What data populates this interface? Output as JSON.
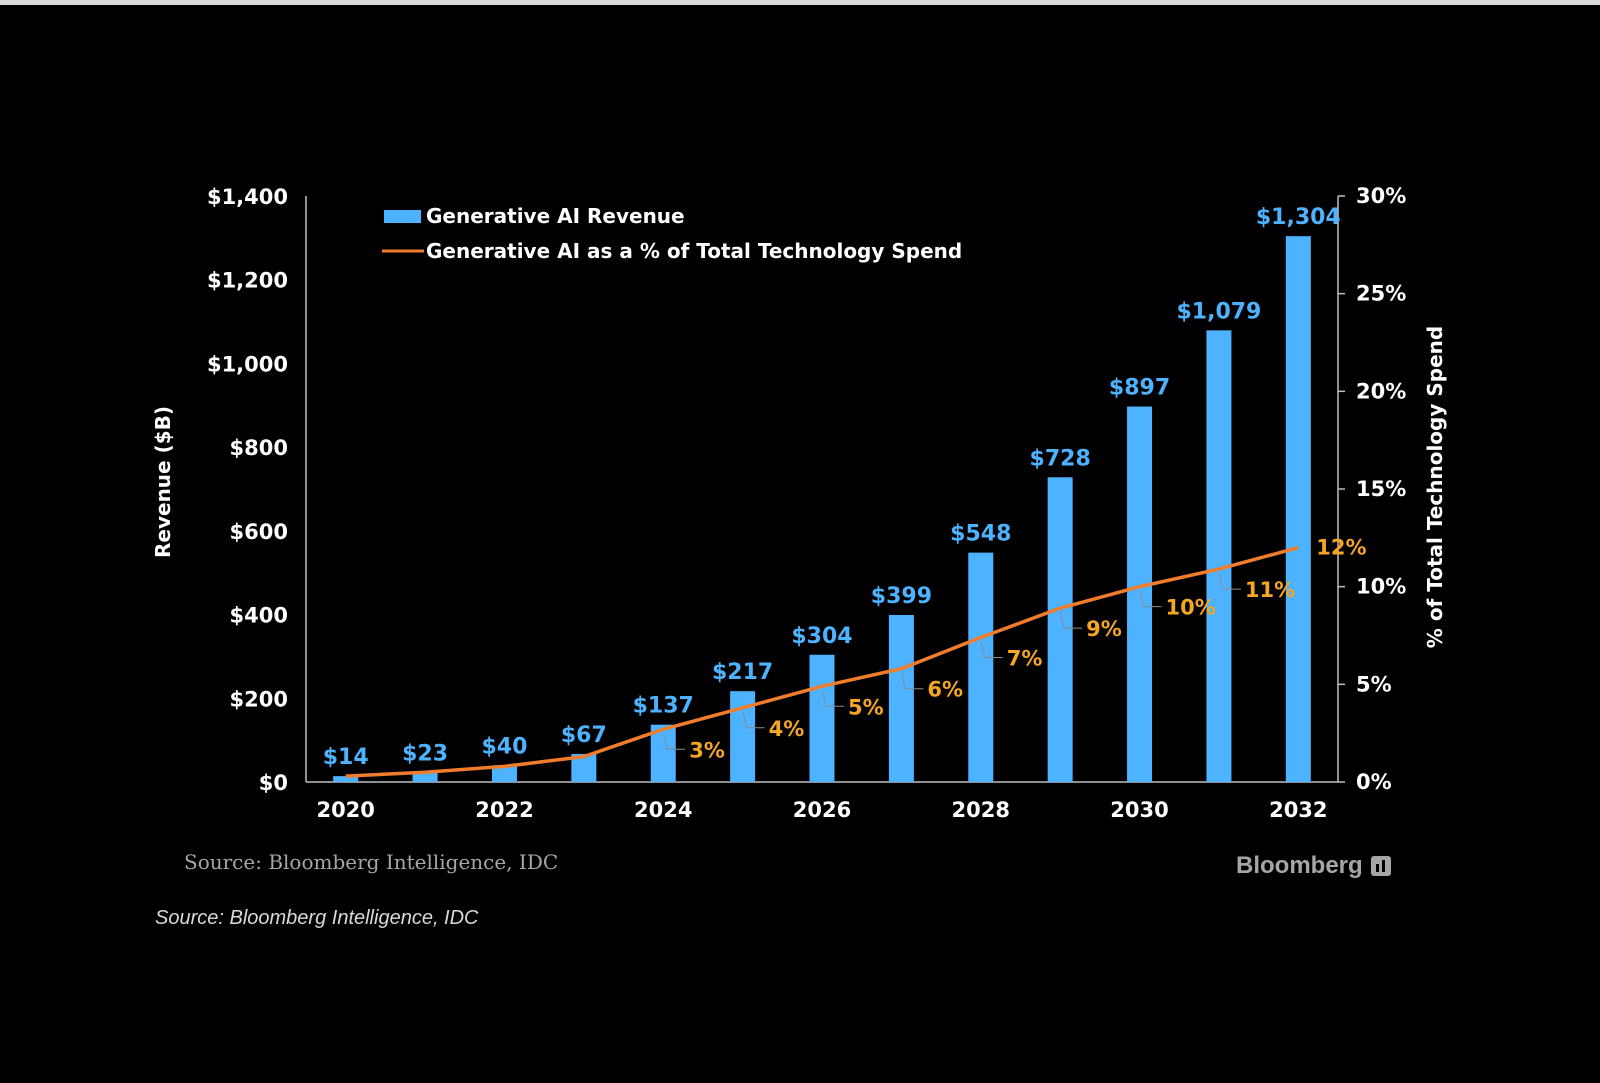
{
  "chart_data": {
    "type": "bar",
    "categories": [
      "2020",
      "2021",
      "2022",
      "2023",
      "2024",
      "2025",
      "2026",
      "2027",
      "2028",
      "2029",
      "2030",
      "2031",
      "2032"
    ],
    "x_tick_labels": [
      "2020",
      "2022",
      "2024",
      "2026",
      "2028",
      "2030",
      "2032"
    ],
    "series": [
      {
        "name": "Generative AI Revenue",
        "type": "bar",
        "axis": "left",
        "color": "#4db2ff",
        "values": [
          14,
          23,
          40,
          67,
          137,
          217,
          304,
          399,
          548,
          728,
          897,
          1079,
          1304
        ],
        "labels": [
          "$14",
          "$23",
          "$40",
          "$67",
          "$137",
          "$217",
          "$304",
          "$399",
          "$548",
          "$728",
          "$897",
          "$1,079",
          "$1,304"
        ]
      },
      {
        "name": "Generative AI as a % of Total Technology Spend",
        "type": "line",
        "axis": "right",
        "color": "#f07c2c",
        "values": [
          0.3,
          0.5,
          0.8,
          1.3,
          2.7,
          3.8,
          4.9,
          5.8,
          7.4,
          8.9,
          10.0,
          10.9,
          12.0
        ],
        "labels": [
          "",
          "",
          "",
          "",
          "3%",
          "4%",
          "5%",
          "6%",
          "7%",
          "9%",
          "10%",
          "11%",
          "12%"
        ]
      }
    ],
    "ylabel": "Revenue ($B)",
    "ylim": [
      0,
      1400
    ],
    "y_ticks": [
      0,
      200,
      400,
      600,
      800,
      1000,
      1200,
      1400
    ],
    "y_tick_labels": [
      "$0",
      "$200",
      "$400",
      "$600",
      "$800",
      "$1,000",
      "$1,200",
      "$1,400"
    ],
    "y2label": "% of Total Technology Spend",
    "y2lim": [
      0,
      30
    ],
    "y2_ticks": [
      0,
      5,
      10,
      15,
      20,
      25,
      30
    ],
    "y2_tick_labels": [
      "0%",
      "5%",
      "10%",
      "15%",
      "20%",
      "25%",
      "30%"
    ],
    "grid": false,
    "legend_position": "top-left"
  },
  "source_note": "Source: Bloomberg Intelligence, IDC",
  "brand": "Bloomberg",
  "caption": "Source: Bloomberg Intelligence, IDC"
}
